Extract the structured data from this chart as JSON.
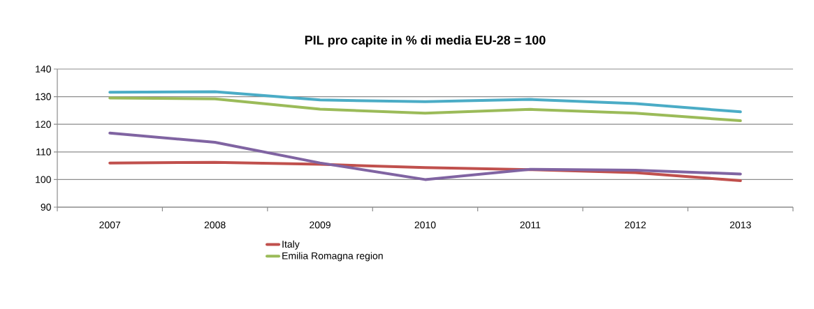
{
  "chart_data": {
    "type": "line",
    "title": "PIL pro capite in % di media EU-28 = 100",
    "categories": [
      "2007",
      "2008",
      "2009",
      "2010",
      "2011",
      "2012",
      "2013"
    ],
    "series": [
      {
        "name": "Italy",
        "color": "#c0504d",
        "values": [
          106,
          106.2,
          105.5,
          104.3,
          103.6,
          102.5,
          99.6
        ]
      },
      {
        "name": "Emilia Romagna region",
        "color": "#9bbb59",
        "values": [
          129.5,
          129.2,
          125.5,
          124,
          125.4,
          124,
          121.3
        ]
      },
      {
        "color": "#4bacc6",
        "values": [
          131.6,
          131.8,
          128.8,
          128.2,
          129,
          127.5,
          124.5
        ]
      },
      {
        "color": "#8064a2",
        "values": [
          116.8,
          113.5,
          106,
          100,
          103.7,
          103.4,
          102
        ]
      }
    ],
    "ylim": [
      90,
      140
    ],
    "yticks": [
      90,
      100,
      110,
      120,
      130,
      140
    ],
    "grid": "y",
    "legend": "bottom",
    "marker": "none",
    "line_style": "solid"
  }
}
